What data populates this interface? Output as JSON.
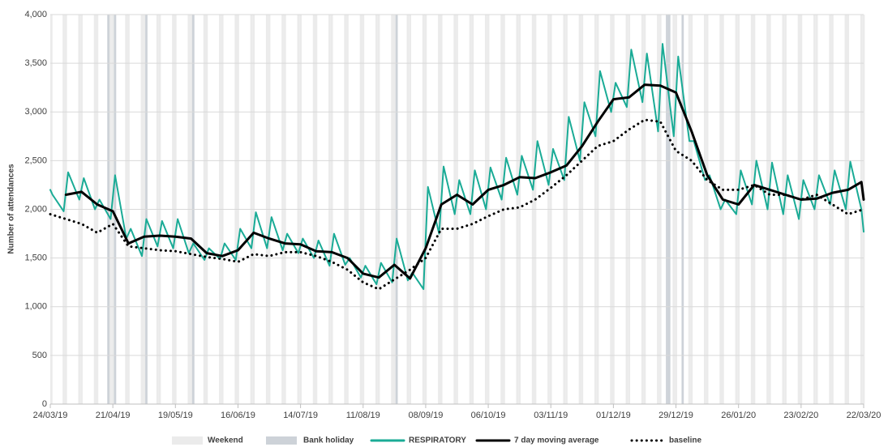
{
  "chart_data": {
    "type": "line",
    "y_label": "Number of attendances",
    "xlim": [
      "24/03/19",
      "22/03/20"
    ],
    "xticks": [
      "24/03/19",
      "21/04/19",
      "19/05/19",
      "16/06/19",
      "14/07/19",
      "11/08/19",
      "08/09/19",
      "06/10/19",
      "03/11/19",
      "01/12/19",
      "29/12/19",
      "26/01/20",
      "23/02/20",
      "22/03/20"
    ],
    "ylim": [
      0,
      4000
    ],
    "yticks": [
      0,
      500,
      {
        "value": 1000,
        "label": "1,000"
      },
      {
        "value": 1500,
        "label": "1,500"
      },
      {
        "value": 2000,
        "label": "2,000"
      },
      {
        "value": 2500,
        "label": "2,500"
      },
      {
        "value": 3000,
        "label": "3,000"
      },
      {
        "value": 3500,
        "label": "3,500"
      },
      {
        "value": 4000,
        "label": "4,000"
      }
    ],
    "grid": true,
    "weekend": {
      "label": "Weekend",
      "color": "#ebebeb"
    },
    "bank_holiday": {
      "label": "Bank holiday",
      "color": "#cdd2d8",
      "dates": [
        "19/04/19",
        "22/04/19",
        "06/05/19",
        "27/05/19",
        "26/08/19",
        "25/12/19",
        "26/12/19",
        "01/01/20"
      ]
    },
    "series": [
      {
        "name": "RESPIRATORY",
        "color": "#1aab96",
        "dash": "solid",
        "x": [
          "24/03/19",
          "25/03/19",
          "30/03/19",
          "01/04/19",
          "06/04/19",
          "08/04/19",
          "13/04/19",
          "15/04/19",
          "20/04/19",
          "22/04/19",
          "27/04/19",
          "29/04/19",
          "04/05/19",
          "06/05/19",
          "11/05/19",
          "13/05/19",
          "18/05/19",
          "20/05/19",
          "25/05/19",
          "27/05/19",
          "01/06/19",
          "03/06/19",
          "08/06/19",
          "10/06/19",
          "15/06/19",
          "17/06/19",
          "22/06/19",
          "24/06/19",
          "29/06/19",
          "01/07/19",
          "06/07/19",
          "08/07/19",
          "13/07/19",
          "15/07/19",
          "20/07/19",
          "22/07/19",
          "27/07/19",
          "29/07/19",
          "03/08/19",
          "05/08/19",
          "10/08/19",
          "12/08/19",
          "17/08/19",
          "19/08/19",
          "24/08/19",
          "26/08/19",
          "31/08/19",
          "02/09/19",
          "07/09/19",
          "09/09/19",
          "14/09/19",
          "16/09/19",
          "21/09/19",
          "23/09/19",
          "28/09/19",
          "30/09/19",
          "05/10/19",
          "07/10/19",
          "12/10/19",
          "14/10/19",
          "19/10/19",
          "21/10/19",
          "26/10/19",
          "28/10/19",
          "02/11/19",
          "04/11/19",
          "09/11/19",
          "11/11/19",
          "16/11/19",
          "18/11/19",
          "23/11/19",
          "25/11/19",
          "30/11/19",
          "02/12/19",
          "07/12/19",
          "09/12/19",
          "14/12/19",
          "16/12/19",
          "21/12/19",
          "23/12/19",
          "28/12/19",
          "30/12/19",
          "04/01/20",
          "06/01/20",
          "11/01/20",
          "13/01/20",
          "18/01/20",
          "20/01/20",
          "25/01/20",
          "27/01/20",
          "01/02/20",
          "03/02/20",
          "08/02/20",
          "10/02/20",
          "15/02/20",
          "17/02/20",
          "22/02/20",
          "24/02/20",
          "29/02/20",
          "02/03/20",
          "07/03/20",
          "09/03/20",
          "14/03/20",
          "16/03/20",
          "21/03/20",
          "22/03/20"
        ],
        "values": [
          2200,
          2150,
          1980,
          2380,
          2100,
          2320,
          2000,
          2100,
          1900,
          2350,
          1700,
          1800,
          1520,
          1900,
          1620,
          1880,
          1600,
          1900,
          1550,
          1650,
          1480,
          1600,
          1490,
          1650,
          1480,
          1800,
          1600,
          1970,
          1600,
          1920,
          1580,
          1750,
          1550,
          1700,
          1500,
          1680,
          1420,
          1750,
          1430,
          1500,
          1300,
          1420,
          1230,
          1450,
          1250,
          1700,
          1270,
          1350,
          1180,
          2230,
          1750,
          2440,
          1950,
          2300,
          1950,
          2400,
          2000,
          2430,
          2100,
          2530,
          2150,
          2550,
          2200,
          2700,
          2250,
          2620,
          2300,
          2950,
          2500,
          3100,
          2750,
          3420,
          3000,
          3300,
          3050,
          3640,
          3100,
          3600,
          2800,
          3700,
          2750,
          3570,
          2700,
          2700,
          2300,
          2350,
          2000,
          2100,
          1950,
          2400,
          2050,
          2500,
          2000,
          2480,
          1950,
          2350,
          1900,
          2300,
          2000,
          2350,
          2050,
          2400,
          2000,
          2490,
          2000,
          1770
        ]
      },
      {
        "name": "7 day moving average",
        "color": "#000000",
        "dash": "solid",
        "x": [
          "31/03/19",
          "07/04/19",
          "14/04/19",
          "21/04/19",
          "28/04/19",
          "05/05/19",
          "12/05/19",
          "19/05/19",
          "26/05/19",
          "02/06/19",
          "09/06/19",
          "16/06/19",
          "23/06/19",
          "30/06/19",
          "07/07/19",
          "14/07/19",
          "21/07/19",
          "28/07/19",
          "04/08/19",
          "11/08/19",
          "18/08/19",
          "25/08/19",
          "01/09/19",
          "08/09/19",
          "15/09/19",
          "22/09/19",
          "29/09/19",
          "06/10/19",
          "13/10/19",
          "20/10/19",
          "27/10/19",
          "03/11/19",
          "10/11/19",
          "17/11/19",
          "24/11/19",
          "01/12/19",
          "08/12/19",
          "15/12/19",
          "22/12/19",
          "29/12/19",
          "05/01/20",
          "12/01/20",
          "19/01/20",
          "26/01/20",
          "02/02/20",
          "09/02/20",
          "16/02/20",
          "23/02/20",
          "01/03/20",
          "08/03/20",
          "15/03/20",
          "21/03/20",
          "22/03/20"
        ],
        "values": [
          2150,
          2180,
          2050,
          1980,
          1650,
          1720,
          1730,
          1720,
          1700,
          1550,
          1520,
          1580,
          1760,
          1700,
          1650,
          1640,
          1570,
          1560,
          1500,
          1340,
          1300,
          1430,
          1290,
          1600,
          2050,
          2150,
          2050,
          2200,
          2250,
          2330,
          2320,
          2380,
          2450,
          2650,
          2900,
          3130,
          3150,
          3280,
          3270,
          3200,
          2800,
          2350,
          2100,
          2050,
          2250,
          2200,
          2150,
          2100,
          2110,
          2170,
          2200,
          2280,
          2100
        ]
      },
      {
        "name": "baseline",
        "color": "#000000",
        "dash": "dotted",
        "x": [
          "24/03/19",
          "31/03/19",
          "07/04/19",
          "14/04/19",
          "21/04/19",
          "28/04/19",
          "05/05/19",
          "12/05/19",
          "19/05/19",
          "26/05/19",
          "02/06/19",
          "09/06/19",
          "16/06/19",
          "23/06/19",
          "30/06/19",
          "07/07/19",
          "14/07/19",
          "21/07/19",
          "28/07/19",
          "04/08/19",
          "11/08/19",
          "18/08/19",
          "25/08/19",
          "01/09/19",
          "08/09/19",
          "15/09/19",
          "22/09/19",
          "29/09/19",
          "06/10/19",
          "13/10/19",
          "20/10/19",
          "27/10/19",
          "03/11/19",
          "10/11/19",
          "17/11/19",
          "24/11/19",
          "01/12/19",
          "08/12/19",
          "15/12/19",
          "22/12/19",
          "29/12/19",
          "05/01/20",
          "12/01/20",
          "19/01/20",
          "26/01/20",
          "02/02/20",
          "09/02/20",
          "16/02/20",
          "23/02/20",
          "01/03/20",
          "08/03/20",
          "15/03/20",
          "22/03/20"
        ],
        "values": [
          1950,
          1900,
          1850,
          1760,
          1850,
          1620,
          1600,
          1580,
          1570,
          1540,
          1510,
          1490,
          1460,
          1540,
          1520,
          1560,
          1560,
          1520,
          1460,
          1380,
          1250,
          1180,
          1280,
          1380,
          1500,
          1800,
          1800,
          1850,
          1930,
          2000,
          2020,
          2100,
          2220,
          2350,
          2500,
          2650,
          2700,
          2820,
          2920,
          2900,
          2600,
          2500,
          2300,
          2200,
          2200,
          2250,
          2150,
          2150,
          2100,
          2150,
          2050,
          1950,
          2000
        ]
      }
    ]
  }
}
